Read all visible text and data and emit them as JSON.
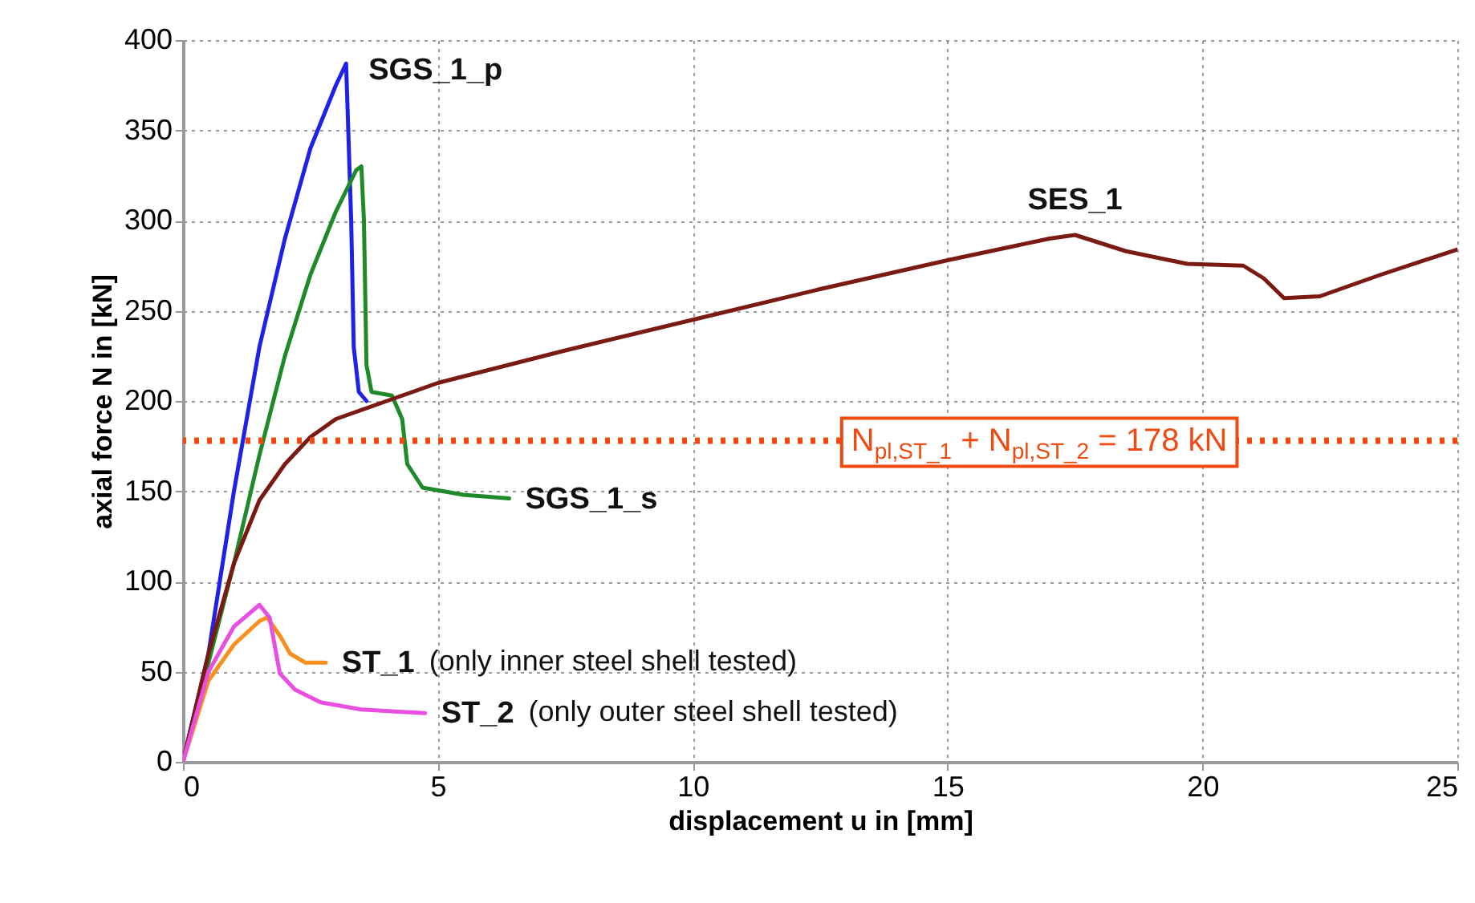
{
  "chart_data": {
    "type": "line",
    "xlabel": "displacement u in [mm]",
    "ylabel": "axial force N in [kN]",
    "xlim": [
      0,
      25
    ],
    "xticks": [
      0,
      5,
      10,
      15,
      20,
      25
    ],
    "ylim": [
      0,
      400
    ],
    "yticks": [
      0,
      50,
      100,
      150,
      200,
      250,
      300,
      350,
      400
    ],
    "grid": true,
    "legend": false,
    "line_style": "solid",
    "marker": "none",
    "series": [
      {
        "name": "SGS_1_p",
        "color": "#1f22e6",
        "x": [
          0,
          0.5,
          1,
          1.5,
          2,
          2.5,
          3,
          3.2,
          3.3,
          3.35,
          3.45,
          3.6
        ],
        "values": [
          0,
          60,
          150,
          230,
          290,
          340,
          375,
          387,
          300,
          230,
          205,
          200
        ]
      },
      {
        "name": "SGS_1_s",
        "color": "#1f8a2a",
        "x": [
          0,
          1,
          1.5,
          2,
          2.5,
          3,
          3.4,
          3.5,
          3.55,
          3.6,
          3.7,
          4.1,
          4.3,
          4.4,
          4.7,
          5.5,
          6.4
        ],
        "values": [
          0,
          110,
          170,
          225,
          270,
          305,
          328,
          330,
          300,
          220,
          205,
          203,
          190,
          165,
          152,
          148,
          146
        ]
      },
      {
        "name": "SES_1",
        "color": "#7a1a12",
        "x": [
          0,
          0.5,
          1,
          1.5,
          2,
          2.5,
          3,
          4,
          5,
          7.5,
          10,
          12.5,
          15,
          17,
          17.5,
          18.5,
          19.7,
          20.8,
          21.2,
          21.6,
          22.3,
          23.5,
          25
        ],
        "values": [
          0,
          60,
          110,
          145,
          165,
          180,
          190,
          200,
          210,
          228,
          245,
          262,
          278,
          290,
          292,
          283,
          276,
          275,
          268,
          257,
          258,
          270,
          284
        ]
      },
      {
        "name": "ST_1",
        "color": "#f7901e",
        "x": [
          0,
          0.5,
          1,
          1.5,
          1.65,
          1.9,
          2.1,
          2.4,
          2.8
        ],
        "values": [
          0,
          45,
          65,
          78,
          80,
          70,
          60,
          55,
          55
        ]
      },
      {
        "name": "ST_2",
        "color": "#e84fe0",
        "x": [
          0,
          0.5,
          1,
          1.5,
          1.7,
          1.9,
          2.2,
          2.7,
          3.5,
          4.75
        ],
        "values": [
          0,
          50,
          75,
          87,
          80,
          49,
          40,
          33,
          29,
          27
        ]
      }
    ],
    "ref_lines": [
      {
        "axis": "y",
        "value": 178,
        "label": "N$_{pl,ST_1}$ + N$_{pl,ST_2}$ = 178 kN",
        "color": "#f04a10",
        "line_style": "dotted"
      }
    ],
    "annotations": [
      "(only inner steel shell tested)",
      "(only outer steel shell tested)"
    ]
  }
}
